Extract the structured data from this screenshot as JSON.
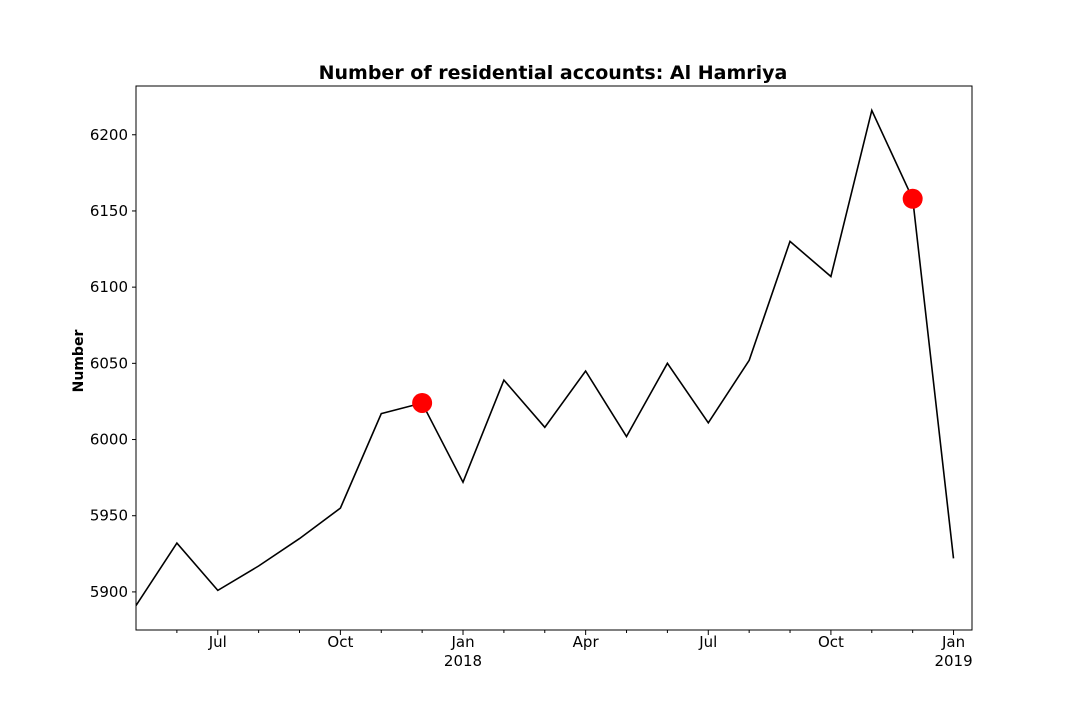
{
  "chart_data": {
    "type": "line",
    "title": "Number of residential accounts: Al Hamriya",
    "xlabel": "",
    "ylabel": "Number",
    "ylim": [
      5875,
      6232
    ],
    "yticks": [
      5900,
      5950,
      6000,
      6050,
      6100,
      6150,
      6200
    ],
    "xlim": [
      "2017-05",
      "2019-01-15"
    ],
    "xticks": [
      {
        "date": "2017-07",
        "label": "Jul",
        "sublabel": ""
      },
      {
        "date": "2017-10",
        "label": "Oct",
        "sublabel": ""
      },
      {
        "date": "2018-01",
        "label": "Jan",
        "sublabel": "2018"
      },
      {
        "date": "2018-04",
        "label": "Apr",
        "sublabel": ""
      },
      {
        "date": "2018-07",
        "label": "Jul",
        "sublabel": ""
      },
      {
        "date": "2018-10",
        "label": "Oct",
        "sublabel": ""
      },
      {
        "date": "2019-01",
        "label": "Jan",
        "sublabel": "2019"
      }
    ],
    "minor_ticks": [
      "2017-06",
      "2017-08",
      "2017-09",
      "2017-11",
      "2017-12",
      "2018-02",
      "2018-03",
      "2018-05",
      "2018-06",
      "2018-08",
      "2018-09",
      "2018-11",
      "2018-12"
    ],
    "grid": false,
    "series": [
      {
        "color": "#000000",
        "points": [
          {
            "x": "2017-06",
            "y": 5932
          },
          {
            "x": "2017-07",
            "y": 5901
          },
          {
            "x": "2017-08",
            "y": 5917
          },
          {
            "x": "2017-09",
            "y": 5935
          },
          {
            "x": "2017-10",
            "y": 5955
          },
          {
            "x": "2017-11",
            "y": 6017
          },
          {
            "x": "2017-12",
            "y": 6024
          },
          {
            "x": "2018-01",
            "y": 5972
          },
          {
            "x": "2018-02",
            "y": 6039
          },
          {
            "x": "2018-03",
            "y": 6008
          },
          {
            "x": "2018-04",
            "y": 6045
          },
          {
            "x": "2018-05",
            "y": 6002
          },
          {
            "x": "2018-06",
            "y": 6050
          },
          {
            "x": "2018-07",
            "y": 6011
          },
          {
            "x": "2018-08",
            "y": 6052
          },
          {
            "x": "2018-09",
            "y": 6130
          },
          {
            "x": "2018-10",
            "y": 6107
          },
          {
            "x": "2018-11",
            "y": 6216
          },
          {
            "x": "2018-12",
            "y": 6158
          },
          {
            "x": "2019-01",
            "y": 5922
          }
        ],
        "leading_value": 5891
      }
    ],
    "markers": {
      "color": "#ff0000",
      "points": [
        {
          "x": "2017-12",
          "y": 6024
        },
        {
          "x": "2018-12",
          "y": 6158
        }
      ]
    }
  }
}
